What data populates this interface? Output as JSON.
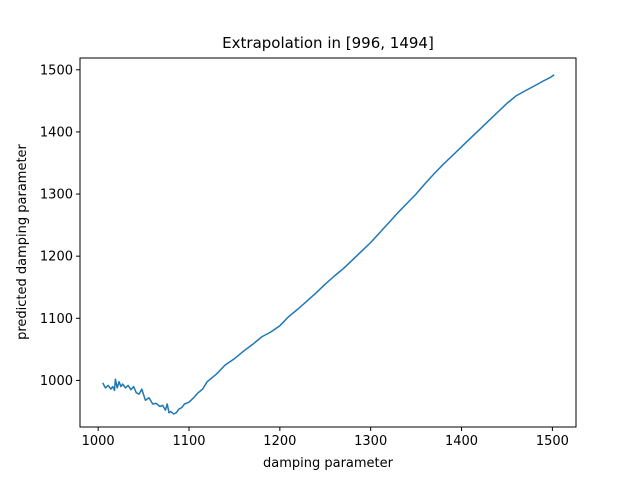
{
  "chart_data": {
    "type": "line",
    "title": "Extrapolation in [996, 1494]",
    "xlabel": "damping parameter",
    "ylabel": "predicted damping parameter",
    "xlim": [
      980,
      1526
    ],
    "ylim": [
      925,
      1519
    ],
    "xticks": [
      1000,
      1100,
      1200,
      1300,
      1400,
      1500
    ],
    "yticks": [
      1000,
      1100,
      1200,
      1300,
      1400,
      1500
    ],
    "grid": false,
    "series": [
      {
        "color": "#1f77b4",
        "x": [
          1005,
          1008,
          1011,
          1014,
          1016,
          1018,
          1019,
          1021,
          1023,
          1025,
          1027,
          1030,
          1033,
          1036,
          1039,
          1042,
          1045,
          1048,
          1052,
          1056,
          1060,
          1064,
          1068,
          1071,
          1074,
          1076,
          1078,
          1080,
          1083,
          1086,
          1089,
          1092,
          1095,
          1100,
          1105,
          1110,
          1115,
          1120,
          1130,
          1140,
          1150,
          1160,
          1170,
          1180,
          1190,
          1200,
          1210,
          1220,
          1230,
          1240,
          1250,
          1260,
          1270,
          1280,
          1290,
          1300,
          1310,
          1320,
          1330,
          1340,
          1350,
          1360,
          1370,
          1380,
          1390,
          1400,
          1410,
          1420,
          1430,
          1440,
          1450,
          1460,
          1470,
          1480,
          1490,
          1498,
          1502
        ],
        "y": [
          996,
          988,
          992,
          986,
          990,
          984,
          1002,
          988,
          998,
          990,
          994,
          988,
          992,
          985,
          990,
          980,
          978,
          986,
          968,
          972,
          962,
          963,
          958,
          960,
          952,
          962,
          948,
          950,
          946,
          948,
          954,
          956,
          962,
          965,
          972,
          980,
          986,
          998,
          1010,
          1025,
          1035,
          1047,
          1058,
          1070,
          1078,
          1088,
          1103,
          1115,
          1128,
          1141,
          1155,
          1168,
          1180,
          1194,
          1208,
          1222,
          1238,
          1254,
          1270,
          1285,
          1300,
          1317,
          1333,
          1348,
          1362,
          1376,
          1390,
          1404,
          1418,
          1432,
          1446,
          1458,
          1466,
          1474,
          1482,
          1488,
          1492
        ]
      }
    ]
  }
}
